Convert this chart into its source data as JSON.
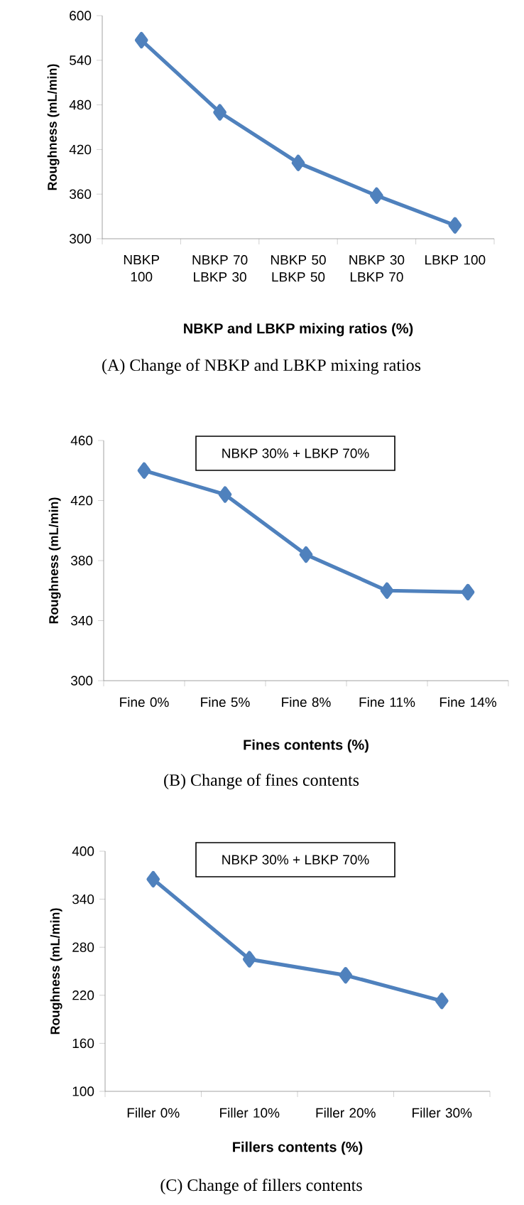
{
  "chart_data": [
    {
      "type": "line",
      "title": "(A) Change of NBKP and LBKP mixing ratios",
      "xlabel": "NBKP and LBKP mixing ratios (%)",
      "ylabel": "Roughness (mL/min)",
      "categories": [
        "NBKP 100",
        "NBKP 70 LBKP 30",
        "NBKP 50 LBKP 50",
        "NBKP 30 LBKP 70",
        "LBKP 100"
      ],
      "values": [
        567,
        470,
        402,
        358,
        318
      ],
      "color": "#4f81bd",
      "marker": "diamond",
      "line_style": "solid",
      "ylim": [
        300,
        600
      ],
      "yticks": [
        300,
        360,
        420,
        480,
        540,
        600
      ]
    },
    {
      "type": "line",
      "title": "(B) Change of fines contents",
      "xlabel": "Fines contents (%)",
      "ylabel": "Roughness (mL/min)",
      "annotations": [
        "NBKP 30% + LBKP 70%"
      ],
      "categories": [
        "Fine 0%",
        "Fine 5%",
        "Fine 8%",
        "Fine 11%",
        "Fine 14%"
      ],
      "values": [
        440,
        424,
        384,
        360,
        359
      ],
      "color": "#4f81bd",
      "marker": "diamond",
      "line_style": "solid",
      "ylim": [
        300,
        460
      ],
      "yticks": [
        300,
        340,
        380,
        420,
        460
      ]
    },
    {
      "type": "line",
      "title": "(C) Change of fillers contents",
      "xlabel": "Fillers contents (%)",
      "ylabel": "Roughness (mL/min)",
      "annotations": [
        "NBKP 30% + LBKP 70%"
      ],
      "categories": [
        "Filler 0%",
        "Filler 10%",
        "Filler 20%",
        "Filler 30%"
      ],
      "values": [
        365,
        265,
        245,
        213
      ],
      "color": "#4f81bd",
      "marker": "diamond",
      "line_style": "solid",
      "ylim": [
        100,
        400
      ],
      "yticks": [
        100,
        160,
        220,
        280,
        340,
        400
      ]
    }
  ]
}
